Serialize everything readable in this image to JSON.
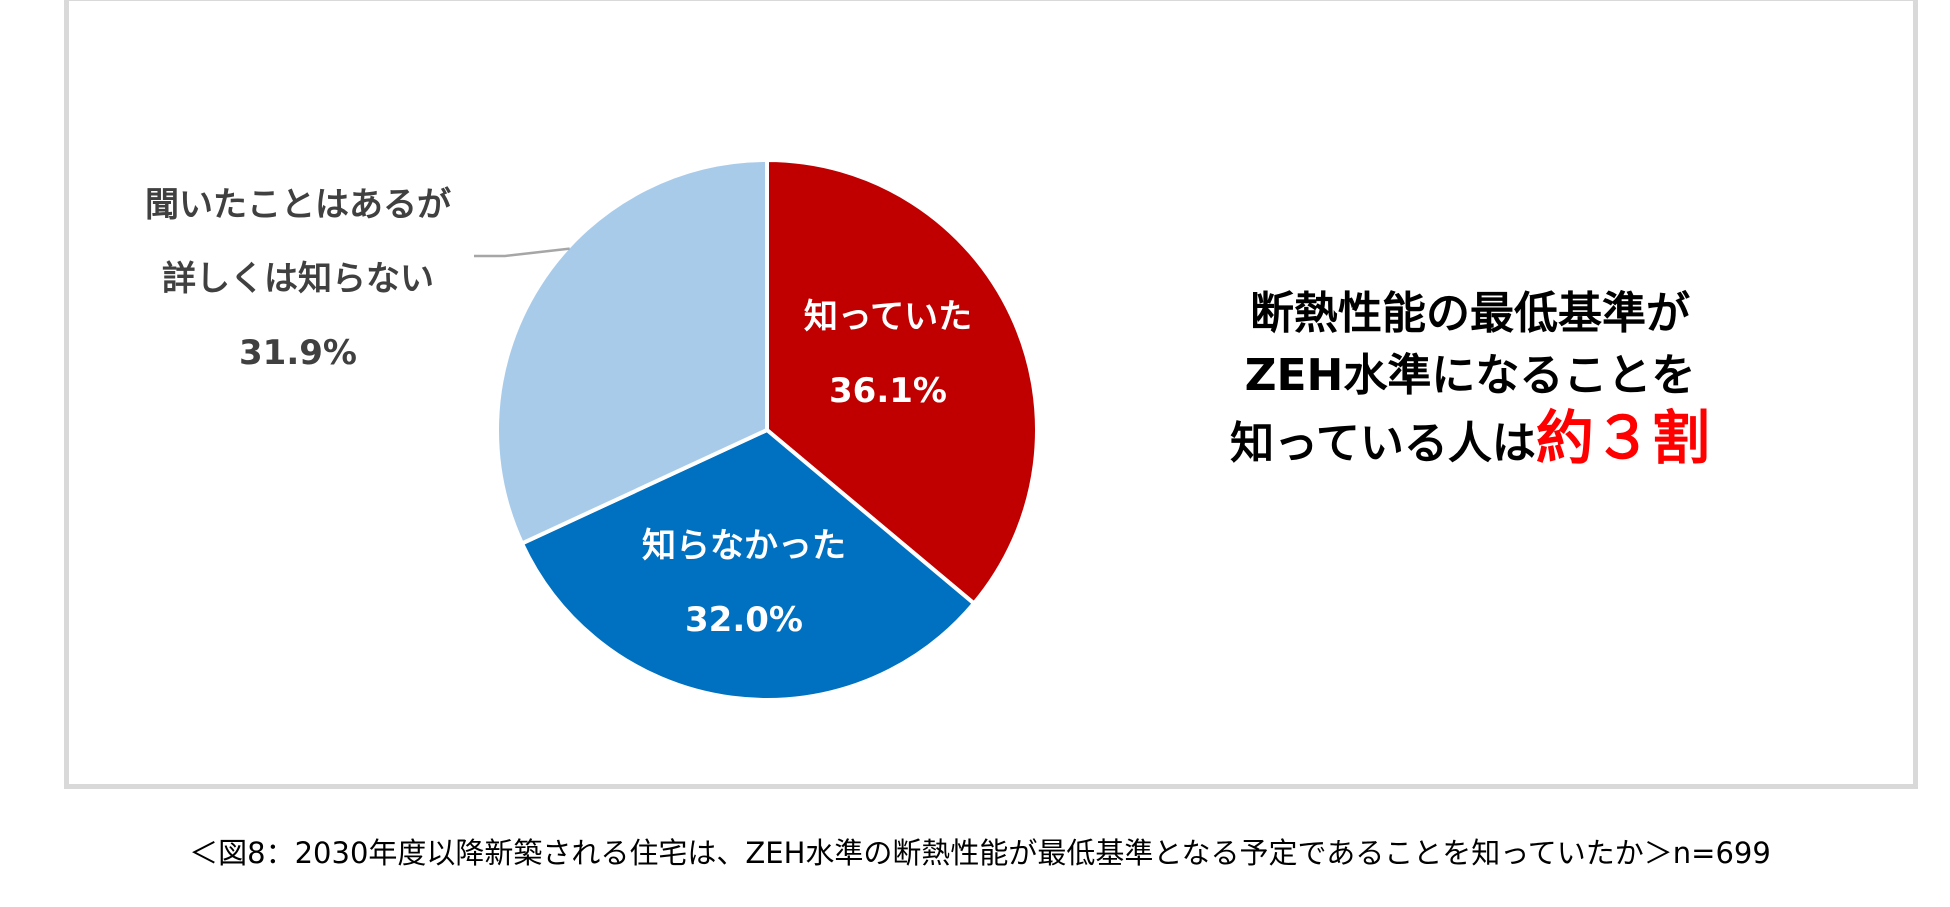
{
  "chart_data": {
    "type": "pie",
    "start_angle_deg": 0,
    "direction": "clockwise",
    "slices": [
      {
        "label": "知っていた",
        "value": 36.1,
        "value_label": "36.1%",
        "color": "#c00000",
        "label_position": "inside"
      },
      {
        "label": "知らなかった",
        "value": 32.0,
        "value_label": "32.0%",
        "color": "#0070c0",
        "label_position": "inside"
      },
      {
        "label_lines": [
          "聞いたことはあるが",
          "詳しくは知らない"
        ],
        "value": 31.9,
        "value_label": "31.9%",
        "color": "#a9cbea",
        "label_position": "outside"
      }
    ],
    "slice_border_color": "#ffffff",
    "leader_line_color": "#a6a6a6"
  },
  "headline": {
    "line1": "断熱性能の最低基準が",
    "line2": "ZEH水準になることを",
    "line3_prefix": "知っている人は",
    "line3_emphasis": "約３割",
    "emphasis_color": "#ff0000"
  },
  "caption": "＜図8：2030年度以降新築される住宅は、ZEH水準の断熱性能が最低基準となる予定であることを知っていたか＞n=699"
}
